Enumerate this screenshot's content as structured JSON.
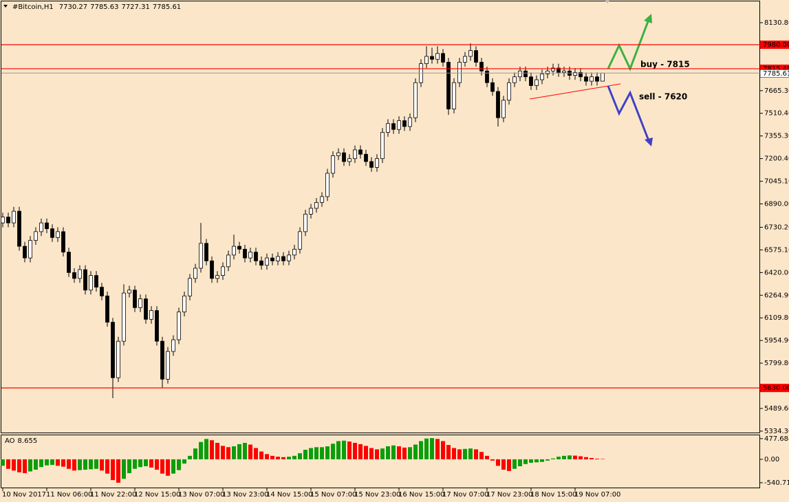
{
  "chart_data": {
    "type": "candlestick",
    "title": "#Bitcoin,H1",
    "open": [
      6760,
      6800,
      6760,
      6840,
      6600,
      6520,
      6640,
      6700,
      6760,
      6720,
      6660,
      6700,
      6560,
      6420,
      6380,
      6440,
      6300,
      6400,
      6320,
      6260,
      6080,
      5700,
      5950,
      6280,
      6300,
      6180,
      6240,
      6100,
      6160,
      5950,
      5690,
      5880,
      5960,
      6150,
      6260,
      6380,
      6450,
      6620,
      6500,
      6380,
      6400,
      6460,
      6540,
      6600,
      6580,
      6520,
      6560,
      6500,
      6470,
      6520,
      6500,
      6530,
      6500,
      6540,
      6580,
      6700,
      6820,
      6860,
      6900,
      6940,
      7100,
      7220,
      7240,
      7180,
      7200,
      7260,
      7230,
      7180,
      7140,
      7200,
      7380,
      7440,
      7400,
      7460,
      7420,
      7480,
      7720,
      7850,
      7900,
      7880,
      7920,
      7860,
      7540,
      7720,
      7860,
      7900,
      7940,
      7860,
      7800,
      7720,
      7660,
      7480,
      7600,
      7720,
      7760,
      7800,
      7760,
      7700,
      7740,
      7780,
      7800,
      7820,
      7790,
      7800,
      7770,
      7790,
      7760,
      7730,
      7760,
      7730.27
    ],
    "high": [
      6830,
      6830,
      6870,
      6870,
      6630,
      6670,
      6730,
      6790,
      6790,
      6750,
      6730,
      6730,
      6590,
      6450,
      6470,
      6470,
      6430,
      6430,
      6350,
      6290,
      6110,
      5980,
      6340,
      6330,
      6330,
      6270,
      6270,
      6190,
      6190,
      5980,
      5910,
      5990,
      6180,
      6290,
      6410,
      6480,
      6760,
      6650,
      6530,
      6430,
      6490,
      6570,
      6680,
      6630,
      6610,
      6590,
      6590,
      6530,
      6550,
      6550,
      6560,
      6560,
      6570,
      6610,
      6730,
      6850,
      6890,
      6930,
      6970,
      7130,
      7250,
      7270,
      7270,
      7230,
      7290,
      7290,
      7260,
      7210,
      7230,
      7410,
      7470,
      7470,
      7490,
      7490,
      7510,
      7750,
      7880,
      7970,
      7960,
      7970,
      7950,
      7890,
      7750,
      7890,
      7930,
      7990,
      7970,
      7890,
      7830,
      7750,
      7690,
      7630,
      7750,
      7790,
      7830,
      7830,
      7790,
      7770,
      7810,
      7830,
      7850,
      7850,
      7830,
      7830,
      7820,
      7820,
      7790,
      7790,
      7790,
      7785.63
    ],
    "low": [
      6730,
      6730,
      6730,
      6570,
      6490,
      6490,
      6610,
      6670,
      6690,
      6630,
      6630,
      6530,
      6390,
      6350,
      6350,
      6270,
      6270,
      6290,
      6230,
      6050,
      5560,
      5670,
      5920,
      6250,
      6150,
      6150,
      6070,
      6070,
      5920,
      5630,
      5660,
      5850,
      5930,
      6120,
      6230,
      6350,
      6420,
      6470,
      6350,
      6350,
      6370,
      6430,
      6510,
      6550,
      6490,
      6490,
      6470,
      6440,
      6440,
      6470,
      6470,
      6470,
      6470,
      6510,
      6550,
      6670,
      6790,
      6830,
      6870,
      6910,
      7070,
      7190,
      7150,
      7150,
      7170,
      7200,
      7150,
      7110,
      7110,
      7170,
      7350,
      7370,
      7370,
      7390,
      7390,
      7450,
      7690,
      7820,
      7850,
      7850,
      7830,
      7500,
      7510,
      7690,
      7830,
      7870,
      7830,
      7770,
      7690,
      7630,
      7420,
      7450,
      7570,
      7690,
      7730,
      7730,
      7670,
      7670,
      7710,
      7750,
      7770,
      7760,
      7760,
      7740,
      7740,
      7730,
      7700,
      7700,
      7700,
      7727.31
    ],
    "close": [
      6800,
      6760,
      6840,
      6600,
      6520,
      6640,
      6700,
      6760,
      6720,
      6660,
      6700,
      6560,
      6420,
      6380,
      6440,
      6300,
      6400,
      6320,
      6260,
      6080,
      5700,
      5950,
      6280,
      6300,
      6180,
      6240,
      6100,
      6160,
      5950,
      5690,
      5880,
      5960,
      6150,
      6260,
      6380,
      6450,
      6620,
      6500,
      6380,
      6400,
      6460,
      6540,
      6600,
      6580,
      6520,
      6560,
      6500,
      6470,
      6520,
      6500,
      6530,
      6500,
      6540,
      6580,
      6700,
      6820,
      6860,
      6900,
      6940,
      7100,
      7220,
      7240,
      7180,
      7200,
      7260,
      7230,
      7180,
      7140,
      7200,
      7380,
      7440,
      7400,
      7460,
      7420,
      7480,
      7720,
      7850,
      7900,
      7880,
      7920,
      7860,
      7540,
      7720,
      7860,
      7900,
      7940,
      7860,
      7800,
      7720,
      7660,
      7480,
      7600,
      7720,
      7760,
      7800,
      7760,
      7700,
      7740,
      7780,
      7800,
      7820,
      7790,
      7800,
      7770,
      7790,
      7760,
      7730,
      7760,
      7730,
      7785.61
    ],
    "bull_color": "#ffffff",
    "bear_color": "#000000",
    "x_ticks": [
      {
        "index": 0,
        "label": "10 Nov 2017"
      },
      {
        "index": 8,
        "label": "11 Nov 06:00"
      },
      {
        "index": 16,
        "label": "11 Nov 22:00"
      },
      {
        "index": 24,
        "label": "12 Nov 15:00"
      },
      {
        "index": 32,
        "label": "13 Nov 07:00"
      },
      {
        "index": 40,
        "label": "13 Nov 23:00"
      },
      {
        "index": 48,
        "label": "14 Nov 15:00"
      },
      {
        "index": 56,
        "label": "15 Nov 07:00"
      },
      {
        "index": 64,
        "label": "15 Nov 23:00"
      },
      {
        "index": 72,
        "label": "16 Nov 15:00"
      },
      {
        "index": 80,
        "label": "17 Nov 07:00"
      },
      {
        "index": 88,
        "label": "17 Nov 23:00"
      },
      {
        "index": 96,
        "label": "18 Nov 15:00"
      },
      {
        "index": 104,
        "label": "19 Nov 07:00"
      }
    ],
    "ylim": [
      5320,
      8286
    ],
    "yticks": [
      {
        "value": 8130.8,
        "label": "8130.80"
      },
      {
        "value": 7665.3,
        "label": "7665.30"
      },
      {
        "value": 7510.4,
        "label": "7510.40"
      },
      {
        "value": 7355.3,
        "label": "7355.30"
      },
      {
        "value": 7200.4,
        "label": "7200.40"
      },
      {
        "value": 7045.1,
        "label": "7045.10"
      },
      {
        "value": 6890,
        "label": "6890.00"
      },
      {
        "value": 6730.2,
        "label": "6730.20"
      },
      {
        "value": 6575.1,
        "label": "6575.10"
      },
      {
        "value": 6420,
        "label": "6420.00"
      },
      {
        "value": 6264.9,
        "label": "6264.90"
      },
      {
        "value": 6109.8,
        "label": "6109.80"
      },
      {
        "value": 5954.9,
        "label": "5954.90"
      },
      {
        "value": 5799.8,
        "label": "5799.80"
      },
      {
        "value": 5489.6,
        "label": "5489.60"
      },
      {
        "value": 5334.3,
        "label": "5334.30"
      }
    ],
    "levels": [
      {
        "value": 7980,
        "label": "7980.00"
      },
      {
        "value": 7815.49,
        "label": "7815.49"
      },
      {
        "value": 5630,
        "label": "5630.00"
      }
    ],
    "level_color": "#ff0000",
    "annotations": [
      {
        "text": "buy - 7815",
        "color": "#3cb043"
      },
      {
        "text": "sell - 7620",
        "color": "#4040c8"
      }
    ],
    "indicator": {
      "name": "AO",
      "values": [
        -150,
        -220,
        -260,
        -300,
        -320,
        -280,
        -240,
        -180,
        -140,
        -130,
        -150,
        -170,
        -220,
        -260,
        -250,
        -240,
        -230,
        -220,
        -260,
        -330,
        -480,
        -540,
        -450,
        -320,
        -220,
        -180,
        -160,
        -190,
        -240,
        -330,
        -380,
        -330,
        -250,
        -100,
        80,
        250,
        400,
        470,
        440,
        380,
        310,
        280,
        300,
        350,
        380,
        340,
        260,
        180,
        120,
        80,
        60,
        50,
        60,
        80,
        140,
        220,
        260,
        280,
        280,
        300,
        360,
        420,
        430,
        410,
        380,
        350,
        310,
        260,
        230,
        250,
        300,
        320,
        300,
        270,
        280,
        340,
        420,
        480,
        490,
        470,
        420,
        330,
        260,
        230,
        240,
        250,
        230,
        170,
        80,
        -30,
        -150,
        -240,
        -270,
        -220,
        -160,
        -110,
        -80,
        -70,
        -60,
        -30,
        20,
        60,
        80,
        90,
        85,
        70,
        50,
        30,
        15,
        8.655
      ],
      "up_color": "#0b9e0b",
      "down_color": "#ff0000",
      "ylim": [
        -668,
        570
      ],
      "yticks": [
        477.684,
        {
          "value": 0,
          "label": "0.00"
        },
        -540.716
      ]
    }
  }
}
